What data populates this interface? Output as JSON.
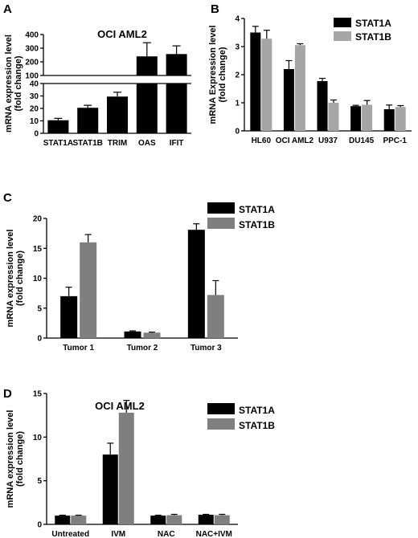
{
  "colors": {
    "stat1a": "#000000",
    "stat1b": "#7f7f7f",
    "stat1b_light": "#a6a6a6"
  },
  "chart_data": [
    {
      "panel": "A",
      "type": "bar",
      "title": "OCI AML2",
      "ylabel": "mRNA expression level (fold change)",
      "axis_break": true,
      "ylim_lower": [
        0,
        40
      ],
      "ylim_upper": [
        100,
        400
      ],
      "yticks_lower": [
        0,
        10,
        20,
        30,
        40
      ],
      "yticks_upper": [
        100,
        200,
        300,
        400
      ],
      "categories": [
        "STAT1A",
        "STAT1B",
        "TRIM",
        "OAS",
        "IFIT"
      ],
      "values": [
        10.5,
        20.5,
        29.5,
        240,
        257
      ],
      "errors": [
        1.5,
        2.0,
        3.5,
        100,
        60
      ],
      "color": "#000000"
    },
    {
      "panel": "B",
      "type": "bar",
      "ylabel": "mRNA Expression level (fold change)",
      "ylim": [
        0,
        4
      ],
      "yticks": [
        0,
        1,
        2,
        3,
        4
      ],
      "categories": [
        "HL60",
        "OCI AML2",
        "U937",
        "DU145",
        "PPC-1"
      ],
      "series": [
        {
          "name": "STAT1A",
          "values": [
            3.5,
            2.2,
            1.77,
            0.88,
            0.77
          ],
          "errors": [
            0.22,
            0.3,
            0.1,
            0.03,
            0.15
          ],
          "color": "#000000"
        },
        {
          "name": "STAT1B",
          "values": [
            3.28,
            3.05,
            1.0,
            0.93,
            0.85
          ],
          "errors": [
            0.3,
            0.05,
            0.1,
            0.15,
            0.05
          ],
          "color": "#a6a6a6"
        }
      ],
      "legend": "top-right"
    },
    {
      "panel": "C",
      "type": "bar",
      "ylabel": "mRNA expression level (fold change)",
      "ylim": [
        0,
        20
      ],
      "yticks": [
        0,
        5,
        10,
        15,
        20
      ],
      "categories": [
        "Tumor 1",
        "Tumor 2",
        "Tumor 3"
      ],
      "series": [
        {
          "name": "STAT1A",
          "values": [
            7.0,
            1.1,
            18.1
          ],
          "errors": [
            1.5,
            0.1,
            1.0
          ],
          "color": "#000000"
        },
        {
          "name": "STAT1B",
          "values": [
            16.0,
            0.9,
            7.2
          ],
          "errors": [
            1.3,
            0.1,
            2.4
          ],
          "color": "#7f7f7f"
        }
      ],
      "legend": "top-right"
    },
    {
      "panel": "D",
      "type": "bar",
      "title": "OCI AML2",
      "ylabel": "mRNA expression level (fold change)",
      "ylim": [
        0,
        15
      ],
      "yticks": [
        0,
        5,
        10,
        15
      ],
      "categories": [
        "Untreated",
        "IVM",
        "NAC",
        "NAC+IVM"
      ],
      "series": [
        {
          "name": "STAT1A",
          "values": [
            1.0,
            8.0,
            1.0,
            1.1
          ],
          "errors": [
            0.05,
            1.3,
            0.05,
            0.05
          ],
          "color": "#000000"
        },
        {
          "name": "STAT1B",
          "values": [
            1.0,
            12.8,
            1.05,
            1.05
          ],
          "errors": [
            0.05,
            1.4,
            0.1,
            0.1
          ],
          "color": "#7f7f7f"
        }
      ],
      "legend": "top-right"
    }
  ]
}
